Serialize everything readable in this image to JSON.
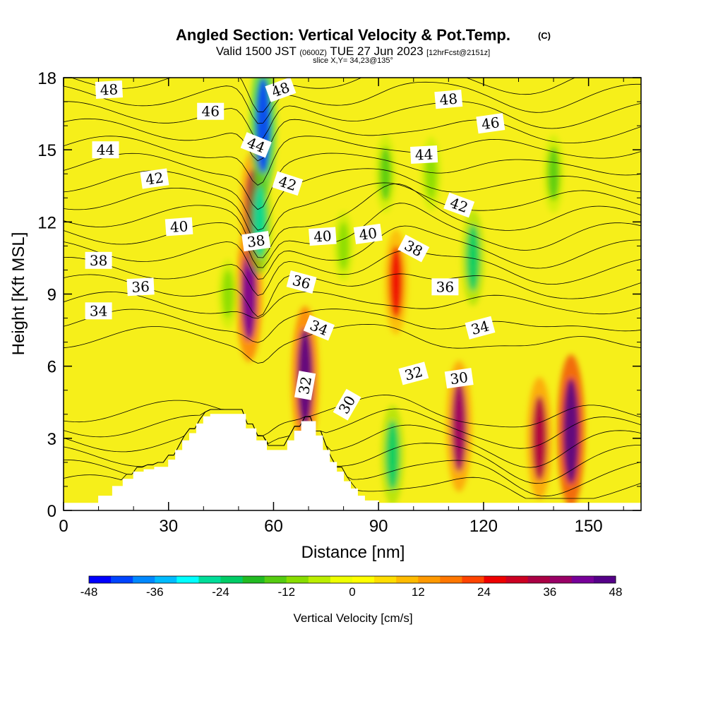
{
  "chart_data": {
    "type": "heatmap",
    "title": "Angled Section: Vertical Velocity & Pot.Temp.",
    "title_mark": "(C)",
    "subtitle": {
      "valid": "Valid 1500 JST",
      "zulu": "(0600Z)",
      "date": "TUE 27 Jun 2023",
      "forecast": "[12hrFcst@2151z]"
    },
    "slice_text": "slice X,Y= 34,23@135°",
    "xlabel": "Distance [nm]",
    "ylabel": "Height [Kft MSL]",
    "xlim": [
      0,
      165
    ],
    "ylim": [
      0,
      18
    ],
    "x_ticks": [
      "0",
      "30",
      "60",
      "90",
      "120",
      "150"
    ],
    "y_ticks": [
      "0",
      "3",
      "6",
      "9",
      "12",
      "15",
      "18"
    ],
    "colorbar": {
      "label": "Vertical Velocity [cm/s]",
      "tick_labels": [
        "-48",
        "-36",
        "-24",
        "-12",
        "0",
        "12",
        "24",
        "36",
        "48"
      ],
      "colors": [
        "#0000ff",
        "#0044ff",
        "#0088ff",
        "#00bbff",
        "#00ffff",
        "#00dd99",
        "#00cc66",
        "#22bb22",
        "#55cc11",
        "#88dd00",
        "#bbee00",
        "#eeff00",
        "#ffff00",
        "#ffdd00",
        "#ffbb00",
        "#ff9900",
        "#ff7700",
        "#ff4400",
        "#ee0000",
        "#cc0022",
        "#aa0044",
        "#990066",
        "#770099",
        "#550088"
      ]
    },
    "vertical_velocity_features": [
      {
        "x": 53,
        "z": 9.0,
        "w": 40
      },
      {
        "x": 54,
        "z": 12.5,
        "w": 32
      },
      {
        "x": 69,
        "z": 5.5,
        "w": 44
      },
      {
        "x": 113,
        "z": 3.5,
        "w": 38
      },
      {
        "x": 145,
        "z": 3.3,
        "w": 48
      },
      {
        "x": 136,
        "z": 3.0,
        "w": 34
      },
      {
        "x": 95,
        "z": 9.5,
        "w": 26
      },
      {
        "x": 57,
        "z": 16.0,
        "w": -42
      },
      {
        "x": 56,
        "z": 12.0,
        "w": -26
      },
      {
        "x": 94,
        "z": 2.3,
        "w": -24
      },
      {
        "x": 117,
        "z": 10.5,
        "w": -22
      },
      {
        "x": 140,
        "z": 14.0,
        "w": -14
      },
      {
        "x": 92,
        "z": 14.0,
        "w": -14
      },
      {
        "x": 105,
        "z": 14.0,
        "w": -12
      },
      {
        "x": 47,
        "z": 9.0,
        "w": -10
      },
      {
        "x": 80,
        "z": 11.0,
        "w": -10
      }
    ],
    "terrain": {
      "x": [
        0,
        9,
        10,
        14,
        17,
        20,
        23,
        26,
        30,
        32,
        34,
        36,
        38,
        40,
        42,
        46,
        52,
        55,
        58,
        61,
        64,
        66,
        68,
        70,
        72,
        74,
        76,
        78,
        80,
        82,
        84,
        86,
        90,
        165
      ],
      "height_kft": [
        0.3,
        0.3,
        0.6,
        1.0,
        1.3,
        1.6,
        1.7,
        1.8,
        2.1,
        2.5,
        2.9,
        3.2,
        3.6,
        3.9,
        4.0,
        4.0,
        3.4,
        2.9,
        2.5,
        2.5,
        2.9,
        3.3,
        3.7,
        3.7,
        3.1,
        2.5,
        2.0,
        1.6,
        1.2,
        0.9,
        0.6,
        0.4,
        0.3,
        0.3
      ]
    },
    "theta_contours": {
      "levels": [
        28,
        29,
        30,
        31,
        32,
        33,
        34,
        35,
        36,
        37,
        38,
        39,
        40,
        41,
        42,
        43,
        44,
        45,
        46,
        47,
        48,
        49
      ],
      "labels": [
        {
          "text": "48",
          "x": 13,
          "z": 17.5,
          "rot": -3
        },
        {
          "text": "46",
          "x": 42,
          "z": 16.6,
          "rot": 0
        },
        {
          "text": "44",
          "x": 12,
          "z": 15.0,
          "rot": 0
        },
        {
          "text": "42",
          "x": 26,
          "z": 13.8,
          "rot": -8
        },
        {
          "text": "40",
          "x": 33,
          "z": 11.8,
          "rot": -4
        },
        {
          "text": "38",
          "x": 10,
          "z": 10.4,
          "rot": 0
        },
        {
          "text": "36",
          "x": 22,
          "z": 9.3,
          "rot": -3
        },
        {
          "text": "34",
          "x": 10,
          "z": 8.3,
          "rot": 0
        },
        {
          "text": "48",
          "x": 62,
          "z": 17.5,
          "rot": -20
        },
        {
          "text": "44",
          "x": 55,
          "z": 15.2,
          "rot": 22
        },
        {
          "text": "42",
          "x": 64,
          "z": 13.6,
          "rot": 18
        },
        {
          "text": "38",
          "x": 55,
          "z": 11.2,
          "rot": -8
        },
        {
          "text": "40",
          "x": 74,
          "z": 11.4,
          "rot": -4
        },
        {
          "text": "36",
          "x": 68,
          "z": 9.5,
          "rot": 15
        },
        {
          "text": "34",
          "x": 73,
          "z": 7.6,
          "rot": 22
        },
        {
          "text": "32",
          "x": 69,
          "z": 5.2,
          "rot": -80
        },
        {
          "text": "30",
          "x": 81,
          "z": 4.4,
          "rot": -60
        },
        {
          "text": "40",
          "x": 87,
          "z": 11.5,
          "rot": -8
        },
        {
          "text": "38",
          "x": 100,
          "z": 10.9,
          "rot": 28
        },
        {
          "text": "36",
          "x": 109,
          "z": 9.3,
          "rot": 0
        },
        {
          "text": "34",
          "x": 119,
          "z": 7.6,
          "rot": -15
        },
        {
          "text": "32",
          "x": 100,
          "z": 5.7,
          "rot": -15
        },
        {
          "text": "30",
          "x": 113,
          "z": 5.5,
          "rot": -8
        },
        {
          "text": "48",
          "x": 110,
          "z": 17.1,
          "rot": -5
        },
        {
          "text": "46",
          "x": 122,
          "z": 16.1,
          "rot": -8
        },
        {
          "text": "44",
          "x": 103,
          "z": 14.8,
          "rot": -3
        },
        {
          "text": "42",
          "x": 113,
          "z": 12.7,
          "rot": 20
        }
      ]
    },
    "grid": false,
    "legend": "bottom-colorbar"
  }
}
